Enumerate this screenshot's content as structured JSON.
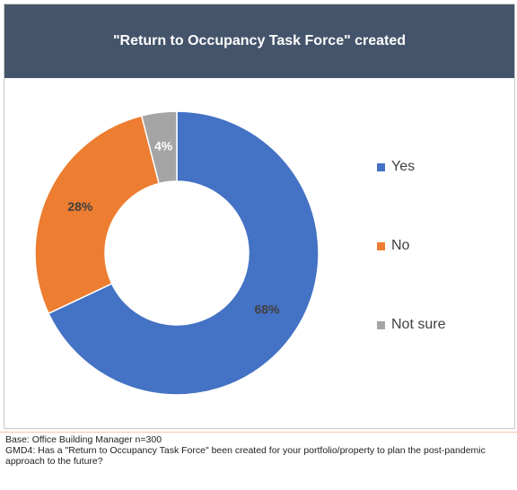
{
  "header": {
    "title": "\"Return to Occupancy Task Force\" created"
  },
  "chart_data": {
    "type": "pie",
    "donut": true,
    "title": "\"Return to Occupancy Task Force\" created",
    "categories": [
      "Yes",
      "No",
      "Not sure"
    ],
    "values": [
      68,
      28,
      4
    ],
    "labels": [
      "68%",
      "28%",
      "4%"
    ],
    "colors": [
      "#4472c4",
      "#ed7d31",
      "#a5a5a5"
    ],
    "label_colors": [
      "#404040",
      "#404040",
      "#ffffff"
    ],
    "legend_position": "right"
  },
  "footer": {
    "base": "Base: Office Building Manager n=300",
    "question": "GMD4: Has a \"Return to Occupancy Task Force\" been created for your portfolio/property to plan the post-pandemic approach to the future?"
  }
}
